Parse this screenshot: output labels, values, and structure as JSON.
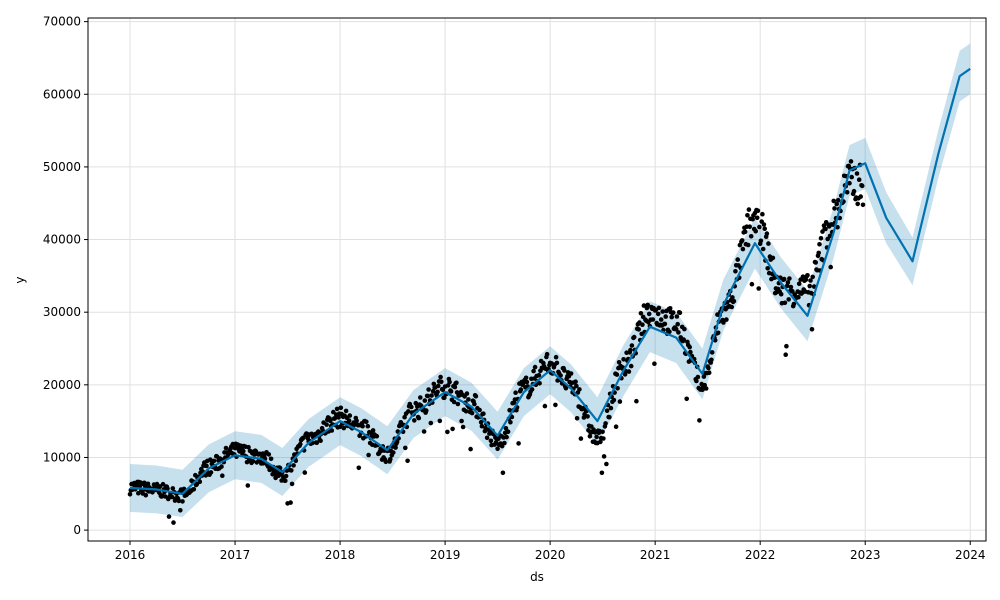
{
  "chart_data": {
    "type": "line",
    "title": "",
    "xlabel": "ds",
    "ylabel": "y",
    "xlim": [
      2015.6,
      2024.15
    ],
    "ylim": [
      -1500,
      70500
    ],
    "x_ticks": [
      2016,
      2017,
      2018,
      2019,
      2020,
      2021,
      2022,
      2023,
      2024
    ],
    "x_tick_labels": [
      "2016",
      "2017",
      "2018",
      "2019",
      "2020",
      "2021",
      "2022",
      "2023",
      "2024"
    ],
    "y_ticks": [
      0,
      10000,
      20000,
      30000,
      40000,
      50000,
      60000,
      70000
    ],
    "y_tick_labels": [
      "0",
      "10000",
      "20000",
      "30000",
      "40000",
      "50000",
      "60000",
      "70000"
    ],
    "grid": true,
    "colors": {
      "forecast_line": "#0072B2",
      "uncertainty_band": "#0072B2",
      "observed_points": "#000000",
      "grid": "#e0e0e0"
    },
    "series": [
      {
        "type": "line",
        "x": [
          2016.0,
          2016.25,
          2016.5,
          2016.75,
          2017.0,
          2017.25,
          2017.45,
          2017.7,
          2018.0,
          2018.2,
          2018.45,
          2018.7,
          2019.0,
          2019.25,
          2019.5,
          2019.75,
          2020.0,
          2020.2,
          2020.45,
          2020.7,
          2020.95,
          2021.2,
          2021.45,
          2021.65,
          2021.95,
          2022.2,
          2022.45,
          2022.7,
          2022.85,
          2023.0,
          2023.2,
          2023.45,
          2023.7,
          2023.9,
          2024.0
        ],
        "y": [
          5800,
          5600,
          5000,
          8500,
          10300,
          9800,
          8000,
          12000,
          15000,
          13500,
          11000,
          16000,
          19000,
          17000,
          13000,
          19000,
          22000,
          19500,
          15000,
          22000,
          28000,
          26500,
          21500,
          31000,
          39500,
          34000,
          29500,
          41000,
          49500,
          50500,
          43000,
          37000,
          52000,
          62500,
          63500
        ]
      },
      {
        "type": "band",
        "x": [
          2016.0,
          2016.25,
          2016.5,
          2016.75,
          2017.0,
          2017.25,
          2017.45,
          2017.7,
          2018.0,
          2018.2,
          2018.45,
          2018.7,
          2019.0,
          2019.25,
          2019.5,
          2019.75,
          2020.0,
          2020.2,
          2020.45,
          2020.7,
          2020.95,
          2021.2,
          2021.45,
          2021.65,
          2021.95,
          2022.2,
          2022.45,
          2022.7,
          2022.85,
          2023.0,
          2023.2,
          2023.45,
          2023.7,
          2023.9,
          2024.0
        ],
        "lower": [
          2500,
          2300,
          1800,
          5200,
          7000,
          6500,
          4700,
          8700,
          11700,
          10200,
          7700,
          12700,
          15700,
          13700,
          9700,
          15700,
          18700,
          16200,
          11700,
          18500,
          24500,
          23000,
          18000,
          27500,
          36000,
          30500,
          26000,
          37500,
          46000,
          47000,
          39500,
          33700,
          48700,
          59000,
          60000
        ],
        "upper": [
          9100,
          8900,
          8300,
          11800,
          13600,
          13100,
          11300,
          15300,
          18300,
          16800,
          14300,
          19300,
          22300,
          20300,
          16300,
          22300,
          25300,
          22800,
          18300,
          25500,
          31500,
          30000,
          25000,
          34500,
          43000,
          37500,
          33000,
          44500,
          53000,
          54000,
          46500,
          40300,
          55300,
          66000,
          67000
        ]
      },
      {
        "type": "scatter",
        "x_range": [
          2016.0,
          2022.98
        ],
        "note_trend_x": [
          2016.0,
          2016.25,
          2016.5,
          2016.75,
          2017.0,
          2017.25,
          2017.45,
          2017.7,
          2018.0,
          2018.2,
          2018.45,
          2018.7,
          2019.0,
          2019.25,
          2019.5,
          2019.75,
          2020.0,
          2020.2,
          2020.45,
          2020.7,
          2020.95,
          2021.2,
          2021.45,
          2021.65,
          2021.95,
          2022.2,
          2022.45,
          2022.7,
          2022.85,
          2022.98
        ],
        "note_trend_y": [
          5900,
          5500,
          4800,
          8700,
          10800,
          10200,
          7500,
          12500,
          15500,
          14000,
          10500,
          16500,
          19800,
          17500,
          12000,
          19500,
          23000,
          20000,
          12500,
          22500,
          30000,
          28500,
          20000,
          30000,
          43000,
          33000,
          33000,
          43000,
          48000,
          47500
        ]
      }
    ]
  }
}
